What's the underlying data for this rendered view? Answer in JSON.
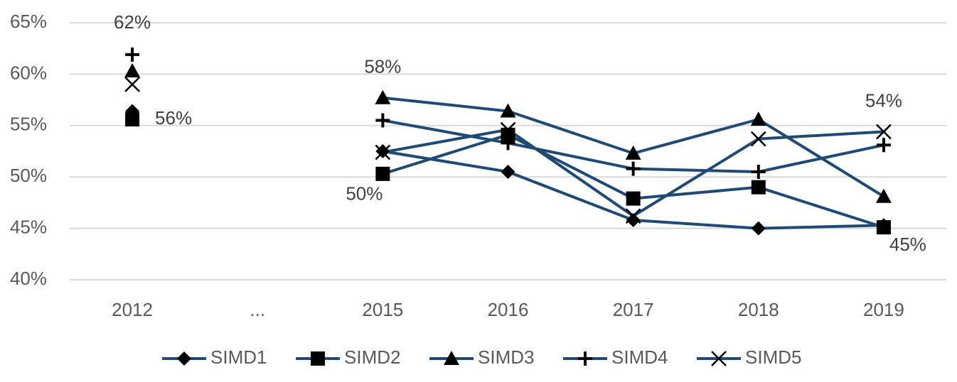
{
  "chart_data": {
    "type": "line",
    "categories": [
      "2012",
      "...",
      "2015",
      "2016",
      "2017",
      "2018",
      "2019"
    ],
    "ylim": [
      40,
      65
    ],
    "yticks": [
      {
        "value": 40,
        "label": "40%"
      },
      {
        "value": 45,
        "label": "45%"
      },
      {
        "value": 50,
        "label": "50%"
      },
      {
        "value": 55,
        "label": "55%"
      },
      {
        "value": 60,
        "label": "60%"
      },
      {
        "value": 65,
        "label": "65%"
      }
    ],
    "grid": true,
    "legend": "bottom",
    "marker_color": "#000000",
    "series": [
      {
        "name": "SIMD1",
        "color": "#1f4a73",
        "marker": "diamond",
        "values": [
          56.4,
          null,
          52.5,
          50.5,
          45.8,
          45.0,
          45.3
        ]
      },
      {
        "name": "SIMD2",
        "color": "#1f4a73",
        "marker": "square",
        "values": [
          55.6,
          null,
          50.3,
          54.1,
          47.9,
          49.0,
          45.1
        ],
        "value_labels": [
          "56%",
          null,
          "50%",
          null,
          null,
          null,
          "45%"
        ]
      },
      {
        "name": "SIMD3",
        "color": "#1f4a73",
        "marker": "triangle",
        "values": [
          60.3,
          null,
          57.7,
          56.4,
          52.3,
          55.6,
          48.1
        ],
        "value_labels": [
          null,
          null,
          "58%",
          null,
          null,
          null,
          null
        ]
      },
      {
        "name": "SIMD4",
        "color": "#1f4a73",
        "marker": "plus",
        "values": [
          61.9,
          null,
          55.5,
          53.3,
          50.8,
          50.5,
          53.1
        ],
        "value_labels": [
          "62%",
          null,
          null,
          null,
          null,
          null,
          null
        ]
      },
      {
        "name": "SIMD5",
        "color": "#1f4a73",
        "marker": "x",
        "values": [
          59.0,
          null,
          52.4,
          54.6,
          46.2,
          53.7,
          54.4
        ],
        "value_labels": [
          null,
          null,
          null,
          null,
          null,
          null,
          "54%"
        ]
      }
    ]
  }
}
